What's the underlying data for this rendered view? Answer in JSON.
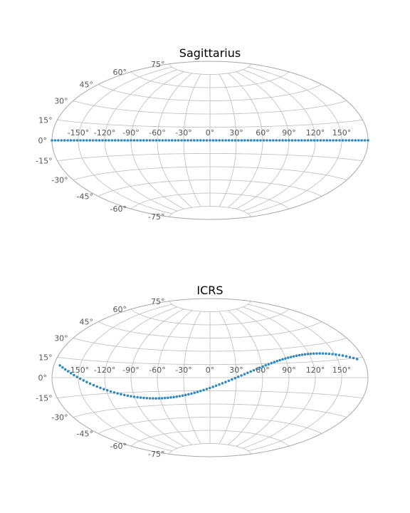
{
  "chart_data": [
    {
      "type": "scatter",
      "projection": "aitoff",
      "title": "Sagittarius",
      "xticks": [
        "-150°",
        "-120°",
        "-90°",
        "-60°",
        "-30°",
        "0°",
        "30°",
        "60°",
        "90°",
        "120°",
        "150°"
      ],
      "yticks": [
        "-75°",
        "-60°",
        "-45°",
        "-30°",
        "-15°",
        "0°",
        "15°",
        "30°",
        "45°",
        "60°",
        "75°"
      ],
      "xlim": [
        -180,
        180
      ],
      "ylim": [
        -90,
        90
      ],
      "grid": true,
      "series": [
        {
          "color": "#348abd",
          "points": {
            "lon_start": -180,
            "lon_end": 180,
            "lon_step": 3.6,
            "lat": 0
          }
        }
      ]
    },
    {
      "type": "scatter",
      "projection": "aitoff",
      "title": "ICRS",
      "xticks": [
        "-150°",
        "-120°",
        "-90°",
        "-60°",
        "-30°",
        "0°",
        "30°",
        "60°",
        "90°",
        "120°",
        "150°"
      ],
      "yticks": [
        "-75°",
        "-60°",
        "-45°",
        "-30°",
        "-15°",
        "0°",
        "15°",
        "30°",
        "45°",
        "60°",
        "75°"
      ],
      "xlim": [
        -180,
        180
      ],
      "ylim": [
        -90,
        90
      ],
      "grid": true,
      "series": [
        {
          "color": "#348abd",
          "points": {
            "lon_start": -173,
            "lon_end": 176,
            "lon_step": 3.6,
            "amplitude_lat": 22.5,
            "phase_lon": 30
          }
        }
      ]
    }
  ]
}
